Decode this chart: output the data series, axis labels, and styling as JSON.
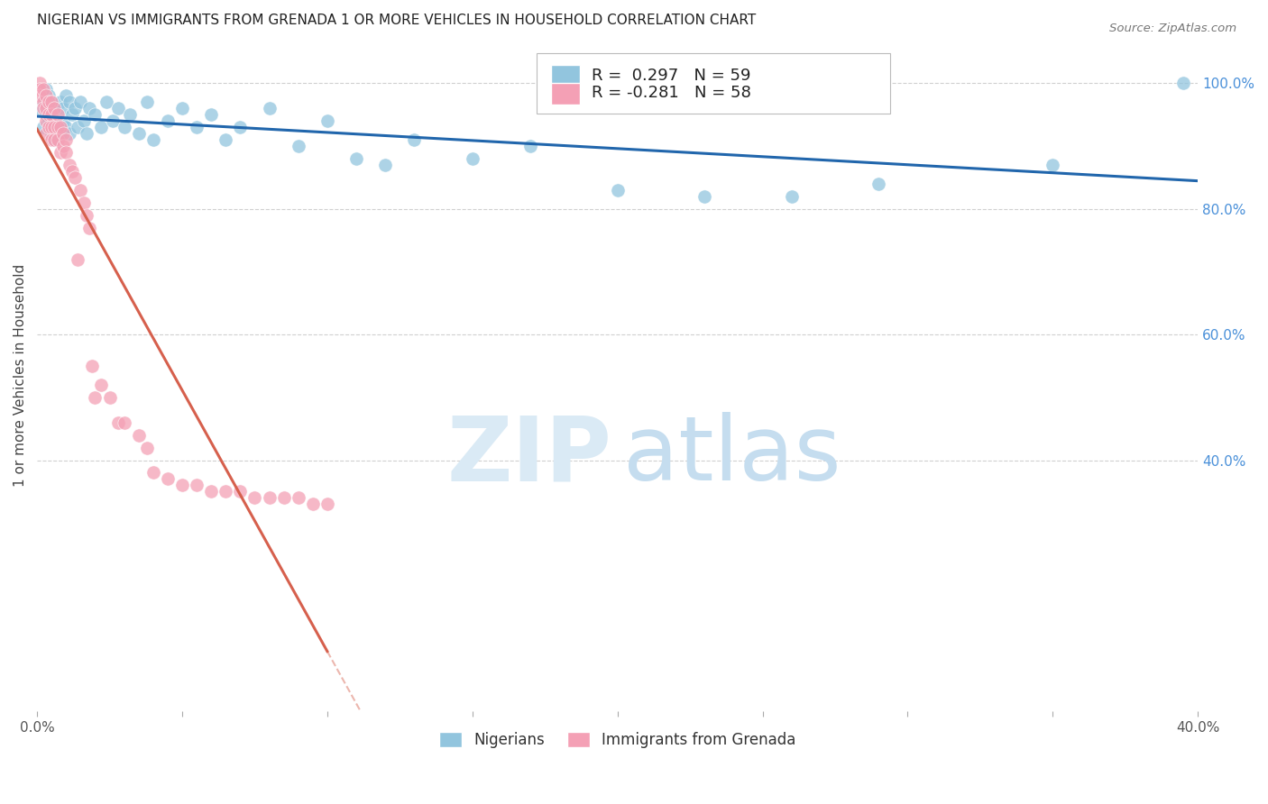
{
  "title": "NIGERIAN VS IMMIGRANTS FROM GRENADA 1 OR MORE VEHICLES IN HOUSEHOLD CORRELATION CHART",
  "source": "Source: ZipAtlas.com",
  "ylabel": "1 or more Vehicles in Household",
  "xlim": [
    0.0,
    0.4
  ],
  "ylim": [
    0.0,
    1.07
  ],
  "x_tick_positions": [
    0.0,
    0.05,
    0.1,
    0.15,
    0.2,
    0.25,
    0.3,
    0.35,
    0.4
  ],
  "x_tick_labels": [
    "0.0%",
    "",
    "",
    "",
    "",
    "",
    "",
    "",
    "40.0%"
  ],
  "y_ticks_right": [
    0.4,
    0.6,
    0.8,
    1.0
  ],
  "y_tick_labels_right": [
    "40.0%",
    "60.0%",
    "80.0%",
    "100.0%"
  ],
  "legend_labels": [
    "Nigerians",
    "Immigrants from Grenada"
  ],
  "R_blue": 0.297,
  "N_blue": 59,
  "R_pink": -0.281,
  "N_pink": 58,
  "blue_color": "#92c5de",
  "pink_color": "#f4a0b5",
  "blue_line_color": "#2166ac",
  "pink_line_color": "#d6604d",
  "grid_color": "#d0d0d0",
  "blue_x": [
    0.001,
    0.002,
    0.002,
    0.003,
    0.003,
    0.004,
    0.004,
    0.005,
    0.005,
    0.006,
    0.006,
    0.006,
    0.007,
    0.007,
    0.008,
    0.008,
    0.009,
    0.009,
    0.01,
    0.01,
    0.011,
    0.011,
    0.012,
    0.013,
    0.014,
    0.015,
    0.016,
    0.017,
    0.018,
    0.02,
    0.022,
    0.024,
    0.026,
    0.028,
    0.03,
    0.032,
    0.035,
    0.038,
    0.04,
    0.045,
    0.05,
    0.055,
    0.06,
    0.065,
    0.07,
    0.08,
    0.09,
    0.1,
    0.11,
    0.12,
    0.13,
    0.15,
    0.17,
    0.2,
    0.23,
    0.26,
    0.29,
    0.35,
    0.395
  ],
  "blue_y": [
    0.96,
    0.97,
    0.93,
    0.99,
    0.95,
    0.98,
    0.94,
    0.97,
    0.92,
    0.96,
    0.94,
    0.91,
    0.95,
    0.93,
    0.97,
    0.92,
    0.96,
    0.94,
    0.98,
    0.93,
    0.97,
    0.92,
    0.95,
    0.96,
    0.93,
    0.97,
    0.94,
    0.92,
    0.96,
    0.95,
    0.93,
    0.97,
    0.94,
    0.96,
    0.93,
    0.95,
    0.92,
    0.97,
    0.91,
    0.94,
    0.96,
    0.93,
    0.95,
    0.91,
    0.93,
    0.96,
    0.9,
    0.94,
    0.88,
    0.87,
    0.91,
    0.88,
    0.9,
    0.83,
    0.82,
    0.82,
    0.84,
    0.87,
    1.0
  ],
  "pink_x": [
    0.001,
    0.001,
    0.001,
    0.002,
    0.002,
    0.002,
    0.003,
    0.003,
    0.003,
    0.003,
    0.004,
    0.004,
    0.004,
    0.005,
    0.005,
    0.005,
    0.005,
    0.006,
    0.006,
    0.006,
    0.007,
    0.007,
    0.007,
    0.008,
    0.008,
    0.009,
    0.009,
    0.01,
    0.01,
    0.011,
    0.012,
    0.013,
    0.014,
    0.015,
    0.016,
    0.017,
    0.018,
    0.019,
    0.02,
    0.022,
    0.025,
    0.028,
    0.03,
    0.035,
    0.038,
    0.04,
    0.045,
    0.05,
    0.055,
    0.06,
    0.065,
    0.07,
    0.075,
    0.08,
    0.085,
    0.09,
    0.095,
    0.1
  ],
  "pink_y": [
    1.0,
    0.99,
    0.98,
    0.97,
    0.96,
    0.99,
    0.98,
    0.96,
    0.94,
    0.92,
    0.97,
    0.95,
    0.93,
    0.97,
    0.95,
    0.93,
    0.91,
    0.96,
    0.93,
    0.91,
    0.95,
    0.93,
    0.91,
    0.93,
    0.89,
    0.92,
    0.9,
    0.91,
    0.89,
    0.87,
    0.86,
    0.85,
    0.72,
    0.83,
    0.81,
    0.79,
    0.77,
    0.55,
    0.5,
    0.52,
    0.5,
    0.46,
    0.46,
    0.44,
    0.42,
    0.38,
    0.37,
    0.36,
    0.36,
    0.35,
    0.35,
    0.35,
    0.34,
    0.34,
    0.34,
    0.34,
    0.33,
    0.33
  ]
}
